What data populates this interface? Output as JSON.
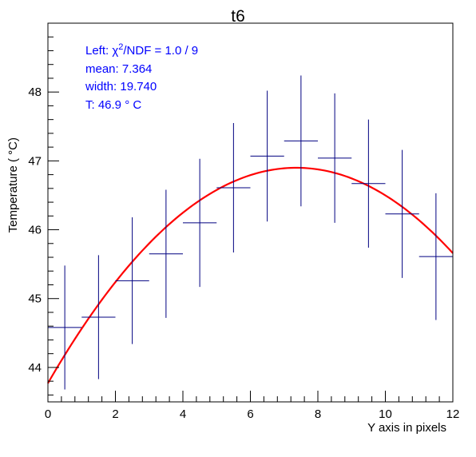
{
  "chart_data": {
    "type": "scatter",
    "title": "t6",
    "xlabel": "Y axis in pixels",
    "ylabel": "Temperature ( °C)",
    "xlim": [
      0,
      12
    ],
    "ylim": [
      43.5,
      49.0
    ],
    "x_ticks": [
      0,
      2,
      4,
      6,
      8,
      10,
      12
    ],
    "y_ticks": [
      44,
      45,
      46,
      47,
      48
    ],
    "grid": false,
    "legend": "none",
    "series": [
      {
        "x": [
          0.5,
          1.5,
          2.5,
          3.5,
          4.5,
          5.5,
          6.5,
          7.5,
          8.5,
          9.5,
          10.5,
          11.5
        ],
        "y": [
          44.58,
          44.73,
          45.26,
          45.65,
          46.1,
          46.61,
          47.07,
          47.29,
          47.04,
          46.67,
          46.23,
          45.61
        ],
        "xerr": [
          0.5,
          0.5,
          0.5,
          0.5,
          0.5,
          0.5,
          0.5,
          0.5,
          0.5,
          0.5,
          0.5,
          0.5
        ],
        "yerr": [
          0.9,
          0.9,
          0.92,
          0.93,
          0.93,
          0.94,
          0.95,
          0.95,
          0.94,
          0.93,
          0.93,
          0.92
        ],
        "color": "#000080"
      }
    ],
    "fit": {
      "type": "gaussian",
      "color": "#ff0000",
      "mean": 7.364,
      "width": 19.74,
      "peak": 46.9,
      "x_range": [
        0,
        12
      ]
    },
    "stats": {
      "color": "#0000ff",
      "chi_prefix": "Left: χ",
      "chi_sup": "2",
      "chi_suffix": "/NDF = 1.0 / 9",
      "mean_line": "mean: 7.364",
      "width_line": "width: 19.740",
      "t_line": "T: 46.9  ° C"
    }
  }
}
